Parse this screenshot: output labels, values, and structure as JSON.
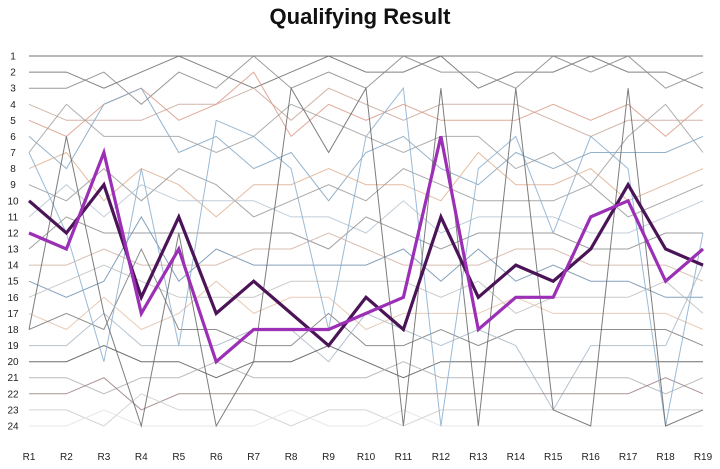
{
  "chart_data": {
    "type": "line",
    "title": "Qualifying Result",
    "xlabel": "",
    "ylabel": "",
    "categories": [
      "R1",
      "R2",
      "R3",
      "R4",
      "R5",
      "R6",
      "R7",
      "R8",
      "R9",
      "R10",
      "R11",
      "R12",
      "R13",
      "R14",
      "R15",
      "R16",
      "R17",
      "R18",
      "R19"
    ],
    "y_ticks": [
      "1",
      "2",
      "3",
      "4",
      "5",
      "6",
      "7",
      "8",
      "9",
      "10",
      "11",
      "12",
      "13",
      "14",
      "15",
      "16",
      "17",
      "18",
      "19",
      "20",
      "21",
      "22",
      "23",
      "24"
    ],
    "ylim": [
      1,
      24
    ],
    "y_inverted": true,
    "grid": false,
    "legend": "none",
    "highlight_series": [
      {
        "color": "#4a1457",
        "values": [
          10,
          12,
          9,
          16,
          11,
          17,
          15,
          17,
          19,
          16,
          18,
          11,
          16,
          14,
          15,
          13,
          9,
          13,
          14
        ]
      },
      {
        "color": "#9b2fb5",
        "values": [
          12,
          13,
          7,
          17,
          13,
          20,
          18,
          18,
          18,
          17,
          16,
          6,
          18,
          16,
          16,
          11,
          10,
          15,
          13
        ]
      }
    ],
    "background_series": [
      {
        "color": "#5a5a5a",
        "values": [
          1,
          1,
          1,
          1,
          1,
          1,
          1,
          1,
          1,
          1,
          1,
          1,
          1,
          1,
          1,
          1,
          1,
          1,
          1
        ]
      },
      {
        "color": "#6b6b6b",
        "values": [
          2,
          2,
          3,
          2,
          1,
          2,
          3,
          2,
          1,
          2,
          2,
          1,
          3,
          2,
          2,
          1,
          2,
          2,
          3
        ]
      },
      {
        "color": "#888888",
        "values": [
          3,
          3,
          2,
          4,
          2,
          3,
          1,
          3,
          2,
          3,
          1,
          2,
          2,
          3,
          1,
          2,
          1,
          3,
          2
        ]
      },
      {
        "color": "#c9a89a",
        "values": [
          4,
          5,
          5,
          5,
          4,
          4,
          3,
          5,
          3,
          4,
          5,
          4,
          4,
          4,
          5,
          6,
          5,
          5,
          5
        ]
      },
      {
        "color": "#d99a86",
        "values": [
          5,
          6,
          4,
          3,
          5,
          4,
          2,
          6,
          4,
          5,
          4,
          5,
          5,
          5,
          4,
          5,
          4,
          6,
          4
        ]
      },
      {
        "color": "#7fa3c1",
        "values": [
          6,
          8,
          4,
          3,
          7,
          6,
          8,
          7,
          10,
          7,
          6,
          8,
          9,
          7,
          8,
          7,
          7,
          7,
          6
        ]
      },
      {
        "color": "#a0a0a0",
        "values": [
          7,
          4,
          6,
          6,
          6,
          7,
          6,
          4,
          5,
          6,
          7,
          6,
          6,
          8,
          7,
          9,
          6,
          4,
          7
        ]
      },
      {
        "color": "#e0b08f",
        "values": [
          8,
          7,
          10,
          8,
          9,
          11,
          9,
          9,
          8,
          9,
          9,
          10,
          7,
          9,
          9,
          8,
          10,
          9,
          8
        ]
      },
      {
        "color": "#999999",
        "values": [
          9,
          10,
          8,
          10,
          8,
          9,
          11,
          10,
          9,
          10,
          8,
          9,
          10,
          10,
          10,
          9,
          11,
          10,
          9
        ]
      },
      {
        "color": "#b7c6d4",
        "values": [
          11,
          9,
          11,
          9,
          10,
          10,
          10,
          11,
          11,
          12,
          10,
          12,
          11,
          11,
          11,
          12,
          12,
          11,
          10
        ]
      },
      {
        "color": "#8e8e8e",
        "values": [
          13,
          11,
          12,
          12,
          12,
          12,
          12,
          12,
          13,
          11,
          12,
          13,
          12,
          12,
          12,
          13,
          13,
          12,
          12
        ]
      },
      {
        "color": "#d2b3a5",
        "values": [
          14,
          14,
          13,
          14,
          14,
          14,
          13,
          13,
          12,
          13,
          14,
          14,
          14,
          13,
          13,
          14,
          14,
          14,
          15
        ]
      },
      {
        "color": "#6e8fb0",
        "values": [
          15,
          16,
          15,
          11,
          15,
          13,
          14,
          14,
          14,
          14,
          13,
          15,
          13,
          15,
          14,
          15,
          15,
          16,
          16
        ]
      },
      {
        "color": "#c0c0c0",
        "values": [
          16,
          15,
          14,
          15,
          16,
          16,
          16,
          15,
          15,
          15,
          15,
          16,
          15,
          17,
          16,
          16,
          16,
          15,
          17
        ]
      },
      {
        "color": "#e6c2a8",
        "values": [
          17,
          18,
          16,
          18,
          17,
          15,
          17,
          16,
          16,
          18,
          17,
          17,
          17,
          16,
          17,
          17,
          17,
          17,
          18
        ]
      },
      {
        "color": "#7a7a7a",
        "values": [
          18,
          17,
          18,
          13,
          18,
          18,
          19,
          19,
          17,
          19,
          19,
          18,
          19,
          18,
          18,
          18,
          18,
          18,
          19
        ]
      },
      {
        "color": "#a8b8c8",
        "values": [
          19,
          19,
          17,
          19,
          19,
          19,
          18,
          18,
          20,
          17,
          18,
          19,
          18,
          19,
          23,
          19,
          19,
          19,
          14
        ]
      },
      {
        "color": "#555555",
        "values": [
          20,
          20,
          19,
          20,
          20,
          21,
          20,
          20,
          19,
          20,
          21,
          20,
          20,
          20,
          20,
          20,
          20,
          20,
          20
        ]
      },
      {
        "color": "#b0b0b0",
        "values": [
          21,
          21,
          22,
          21,
          21,
          20,
          21,
          21,
          21,
          21,
          20,
          21,
          21,
          21,
          21,
          21,
          21,
          22,
          21
        ]
      },
      {
        "color": "#9a7f7f",
        "values": [
          22,
          22,
          21,
          23,
          22,
          22,
          22,
          22,
          22,
          22,
          22,
          22,
          22,
          22,
          22,
          22,
          22,
          21,
          22
        ]
      },
      {
        "color": "#cccccc",
        "values": [
          23,
          23,
          24,
          22,
          23,
          23,
          23,
          24,
          23,
          23,
          24,
          23,
          23,
          23,
          23,
          23,
          23,
          23,
          23
        ]
      },
      {
        "color": "#e3e3e3",
        "values": [
          24,
          24,
          23,
          24,
          24,
          24,
          24,
          23,
          24,
          24,
          23,
          24,
          24,
          24,
          24,
          24,
          24,
          24,
          24
        ]
      },
      {
        "color": "#8aaecf",
        "values": [
          7,
          12,
          20,
          8,
          19,
          5,
          6,
          8,
          18,
          6,
          3,
          24,
          8,
          6,
          12,
          6,
          8,
          24,
          12
        ]
      },
      {
        "color": "#666666",
        "values": [
          18,
          6,
          17,
          24,
          12,
          24,
          20,
          3,
          7,
          3,
          24,
          3,
          24,
          3,
          23,
          24,
          3,
          24,
          23
        ]
      }
    ]
  }
}
